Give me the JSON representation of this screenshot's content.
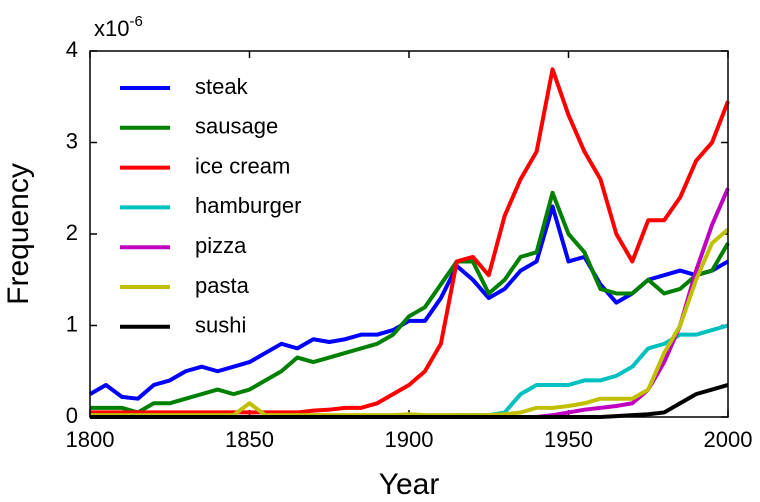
{
  "chart_data": {
    "type": "line",
    "x_label": "Year",
    "y_label": "Frequency",
    "y_multiplier": {
      "base": "x10",
      "exponent": "-6"
    },
    "xlim": [
      1800,
      2000
    ],
    "xticks": [
      1800,
      1850,
      1900,
      1950,
      2000
    ],
    "ylim": [
      0,
      4
    ],
    "yticks": [
      0,
      1,
      2,
      3,
      4
    ],
    "grid": false,
    "legend": "upper left",
    "x": [
      1800,
      1805,
      1810,
      1815,
      1820,
      1825,
      1830,
      1835,
      1840,
      1845,
      1850,
      1855,
      1860,
      1865,
      1870,
      1875,
      1880,
      1885,
      1890,
      1895,
      1900,
      1905,
      1910,
      1915,
      1920,
      1925,
      1930,
      1935,
      1940,
      1945,
      1950,
      1955,
      1960,
      1965,
      1970,
      1975,
      1980,
      1985,
      1990,
      1995,
      2000
    ],
    "series": [
      {
        "name": "steak",
        "color": "#0000ff",
        "values": [
          0.25,
          0.35,
          0.22,
          0.2,
          0.35,
          0.4,
          0.5,
          0.55,
          0.5,
          0.55,
          0.6,
          0.7,
          0.8,
          0.75,
          0.85,
          0.82,
          0.85,
          0.9,
          0.9,
          0.95,
          1.05,
          1.05,
          1.3,
          1.65,
          1.5,
          1.3,
          1.4,
          1.6,
          1.7,
          2.3,
          1.7,
          1.75,
          1.45,
          1.25,
          1.35,
          1.5,
          1.55,
          1.6,
          1.55,
          1.6,
          1.7
        ]
      },
      {
        "name": "sausage",
        "color": "#008000",
        "values": [
          0.1,
          0.1,
          0.1,
          0.05,
          0.15,
          0.15,
          0.2,
          0.25,
          0.3,
          0.25,
          0.3,
          0.4,
          0.5,
          0.65,
          0.6,
          0.65,
          0.7,
          0.75,
          0.8,
          0.9,
          1.1,
          1.2,
          1.45,
          1.7,
          1.7,
          1.35,
          1.5,
          1.75,
          1.8,
          2.45,
          2.0,
          1.8,
          1.4,
          1.35,
          1.35,
          1.5,
          1.35,
          1.4,
          1.55,
          1.6,
          1.9
        ]
      },
      {
        "name": "ice cream",
        "color": "#ff0000",
        "values": [
          0.05,
          0.05,
          0.05,
          0.05,
          0.05,
          0.05,
          0.05,
          0.05,
          0.05,
          0.05,
          0.05,
          0.05,
          0.05,
          0.05,
          0.07,
          0.08,
          0.1,
          0.1,
          0.15,
          0.25,
          0.35,
          0.5,
          0.8,
          1.7,
          1.75,
          1.55,
          2.2,
          2.6,
          2.9,
          3.8,
          3.3,
          2.9,
          2.6,
          2.0,
          1.7,
          2.15,
          2.15,
          2.4,
          2.8,
          3.0,
          3.45
        ]
      },
      {
        "name": "hamburger",
        "color": "#00c0c0",
        "values": [
          0,
          0,
          0,
          0,
          0,
          0,
          0,
          0,
          0,
          0,
          0,
          0,
          0,
          0,
          0,
          0,
          0,
          0,
          0,
          0,
          0.01,
          0.01,
          0.01,
          0.02,
          0.02,
          0.02,
          0.05,
          0.25,
          0.35,
          0.35,
          0.35,
          0.4,
          0.4,
          0.45,
          0.55,
          0.75,
          0.8,
          0.9,
          0.9,
          0.95,
          1.0
        ]
      },
      {
        "name": "pizza",
        "color": "#c000c0",
        "values": [
          0,
          0,
          0,
          0,
          0,
          0,
          0,
          0,
          0,
          0,
          0,
          0,
          0,
          0,
          0,
          0,
          0,
          0,
          0,
          0,
          0,
          0,
          0,
          0,
          0,
          0,
          0,
          0,
          0,
          0.02,
          0.05,
          0.08,
          0.1,
          0.12,
          0.15,
          0.3,
          0.6,
          1.0,
          1.6,
          2.1,
          2.5
        ]
      },
      {
        "name": "pasta",
        "color": "#c0c000",
        "values": [
          0.02,
          0.02,
          0.02,
          0.02,
          0.02,
          0.02,
          0.02,
          0.02,
          0.02,
          0.02,
          0.15,
          0.02,
          0.02,
          0.02,
          0.02,
          0.02,
          0.02,
          0.02,
          0.02,
          0.02,
          0.03,
          0.02,
          0.02,
          0.02,
          0.02,
          0.02,
          0.03,
          0.05,
          0.1,
          0.1,
          0.12,
          0.15,
          0.2,
          0.2,
          0.2,
          0.3,
          0.7,
          1.0,
          1.5,
          1.9,
          2.05
        ]
      },
      {
        "name": "sushi",
        "color": "#000000",
        "values": [
          0,
          0,
          0,
          0,
          0,
          0,
          0,
          0,
          0,
          0,
          0,
          0,
          0,
          0,
          0,
          0,
          0,
          0,
          0,
          0,
          0,
          0,
          0,
          0,
          0,
          0,
          0,
          0,
          0,
          0,
          0,
          0,
          0,
          0.01,
          0.02,
          0.03,
          0.05,
          0.15,
          0.25,
          0.3,
          0.35
        ]
      }
    ]
  }
}
